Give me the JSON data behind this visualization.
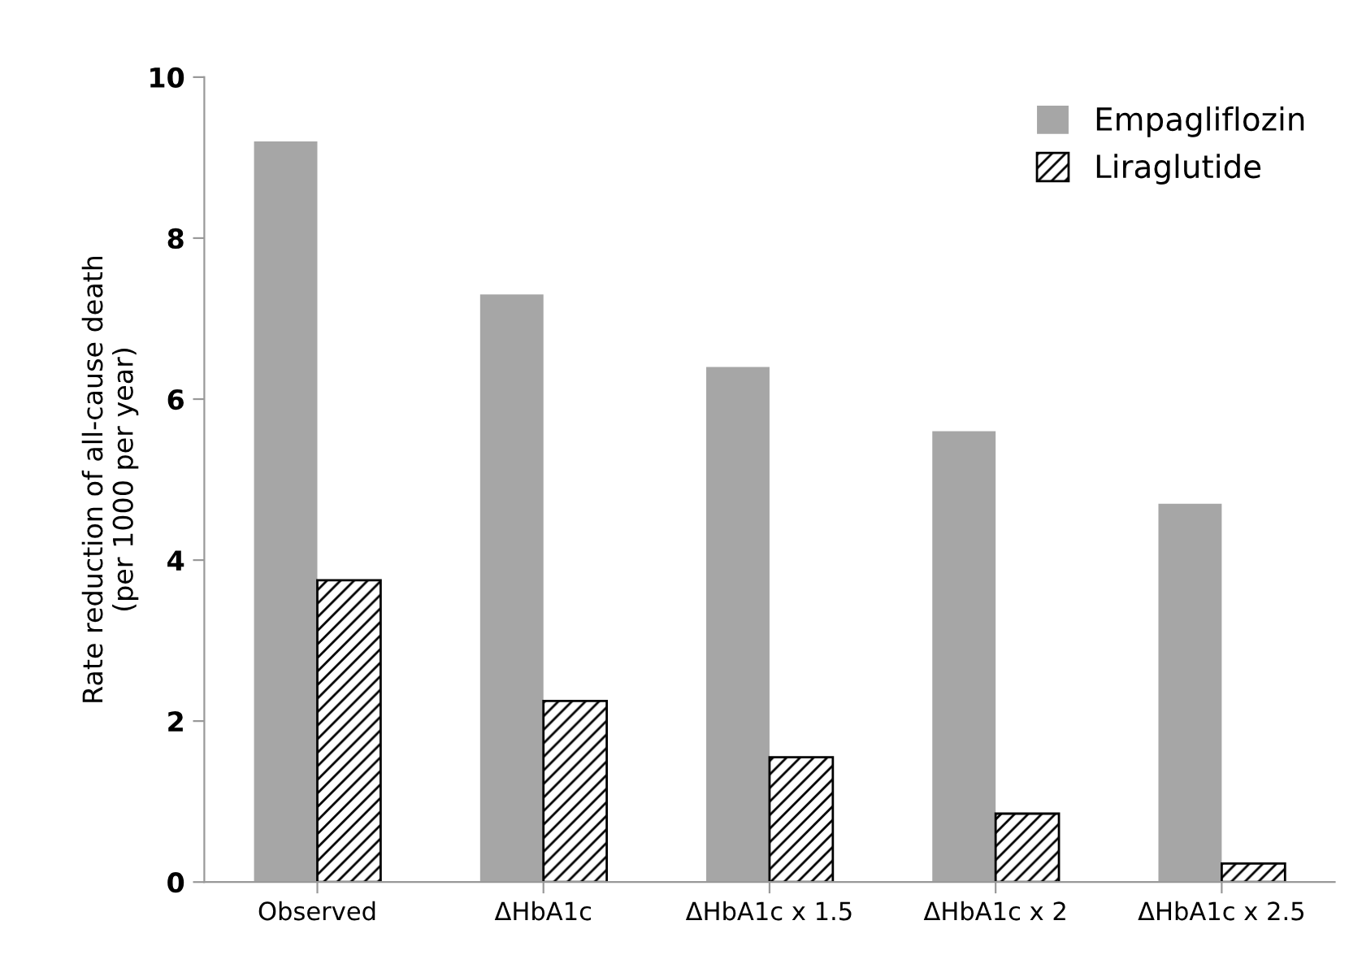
{
  "chart_data": {
    "type": "bar",
    "categories": [
      "Observed",
      "ΔHbA1c",
      "ΔHbA1c x 1.5",
      "ΔHbA1c x 2",
      "ΔHbA1c x 2.5"
    ],
    "ylabel": "Rate reduction of all-cause death\n(per 1000 per year)",
    "series": [
      {
        "name": "Empagliflozin",
        "color": "#a6a6a6",
        "values": [
          9.2,
          7.3,
          6.4,
          5.6,
          4.7
        ]
      },
      {
        "name": "Liraglutide",
        "color": "#000000",
        "values": [
          3.75,
          2.25,
          1.55,
          0.85,
          0.23
        ]
      }
    ],
    "ylim": [
      0,
      10
    ],
    "yticks": [
      0,
      2,
      4,
      6,
      8,
      10
    ],
    "grid": false,
    "legend": "top right"
  }
}
